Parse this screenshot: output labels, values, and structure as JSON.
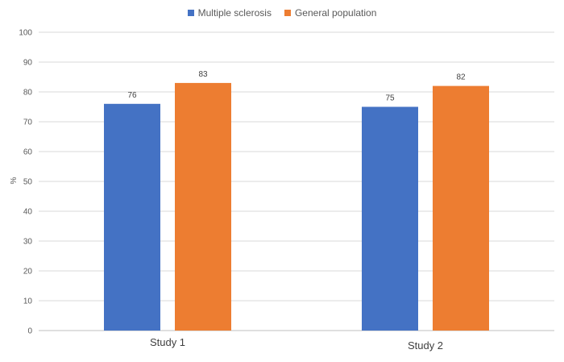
{
  "chart_data": {
    "type": "bar",
    "title": "",
    "xlabel": "",
    "ylabel": "%",
    "categories": [
      "Study 1",
      "Study 2"
    ],
    "series": [
      {
        "name": "Multiple sclerosis",
        "values": [
          76,
          75
        ],
        "color": "#4472C4"
      },
      {
        "name": "General population",
        "values": [
          83,
          82
        ],
        "color": "#ED7D31"
      }
    ],
    "ylim": [
      0,
      100
    ],
    "yticks": [
      0,
      10,
      20,
      30,
      40,
      50,
      60,
      70,
      80,
      90,
      100
    ],
    "grid": true,
    "legend": "top-center",
    "data_labels": true
  }
}
